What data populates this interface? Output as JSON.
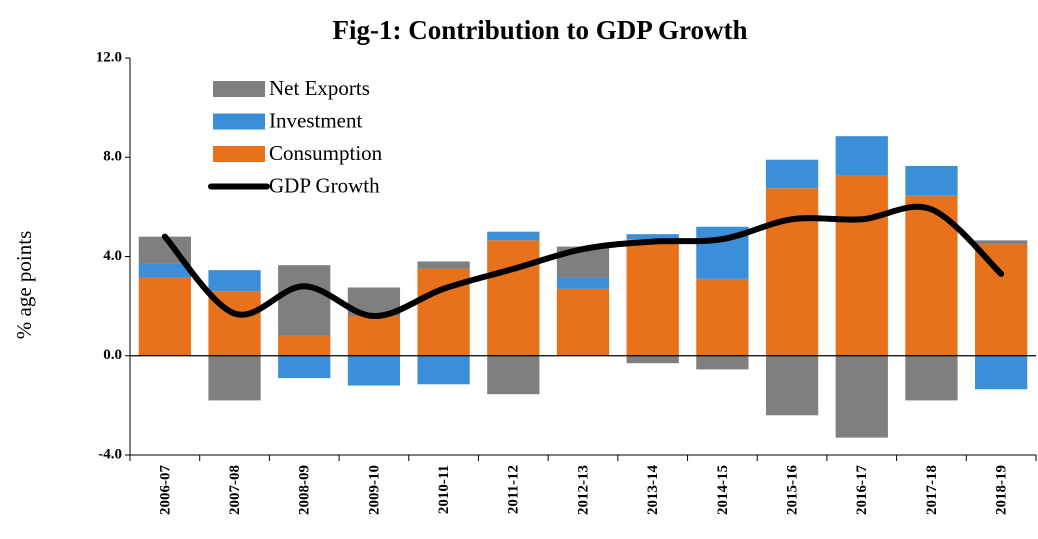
{
  "chart_data": {
    "type": "stacked_bar_line",
    "title": "Fig-1: Contribution  to GDP Growth",
    "y_label": "% age points",
    "categories": [
      "2006-07",
      "2007-08",
      "2008-09",
      "2009-10",
      "2010-11",
      "2011-12",
      "2012-13",
      "2013-14",
      "2014-15",
      "2015-16",
      "2016-17",
      "2017-18",
      "2018-19"
    ],
    "series": [
      {
        "name": "Net Exports",
        "color": "#7f7f7f",
        "kind": "bar",
        "values": [
          1.1,
          -1.8,
          2.85,
          1.15,
          0.3,
          -1.55,
          1.25,
          -0.3,
          -0.55,
          -2.4,
          -3.3,
          -1.8,
          0.15
        ]
      },
      {
        "name": "Investment",
        "color": "#3a8fd8",
        "kind": "bar",
        "values": [
          0.55,
          0.85,
          -0.9,
          -1.2,
          -1.15,
          0.35,
          0.45,
          0.2,
          2.1,
          1.15,
          1.6,
          1.2,
          -1.35
        ]
      },
      {
        "name": "Consumption",
        "color": "#e8711c",
        "kind": "bar",
        "values": [
          3.15,
          2.6,
          0.8,
          1.6,
          3.5,
          4.65,
          2.7,
          4.7,
          3.1,
          6.75,
          7.25,
          6.45,
          4.5
        ]
      },
      {
        "name": "GDP Growth",
        "color": "#000000",
        "kind": "line",
        "values": [
          4.8,
          1.7,
          2.8,
          1.6,
          2.7,
          3.5,
          4.3,
          4.6,
          4.7,
          5.5,
          5.5,
          5.9,
          3.3
        ]
      }
    ],
    "ylim": [
      -4,
      12
    ],
    "yticks": [
      {
        "value": -4,
        "label": "-4.0"
      },
      {
        "value": 0,
        "label": "0.0"
      },
      {
        "value": 4,
        "label": "4.0"
      },
      {
        "value": 8,
        "label": "8.0"
      },
      {
        "value": 12,
        "label": "12.0"
      }
    ],
    "legend": "upper left"
  }
}
